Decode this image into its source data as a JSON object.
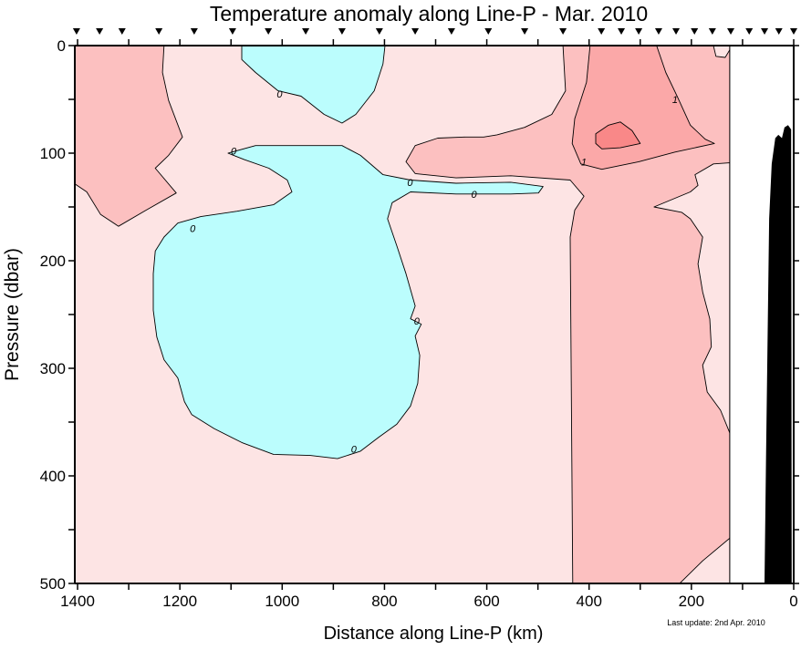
{
  "chart_data": {
    "type": "contour",
    "title": "Temperature anomaly along Line-P - Mar. 2010",
    "xlabel": "Distance along Line-P (km)",
    "ylabel": "Pressure (dbar)",
    "xlim": [
      1405,
      0
    ],
    "ylim": [
      0,
      500
    ],
    "x_reversed": true,
    "y_reversed": true,
    "x_ticks": [
      1400,
      1200,
      1000,
      800,
      600,
      400,
      200,
      0
    ],
    "y_ticks": [
      0,
      100,
      200,
      300,
      400,
      500
    ],
    "grid": false,
    "data_extent_km": [
      1405,
      125
    ],
    "stations_km": [
      1402,
      1357,
      1313,
      1241,
      1172,
      1097,
      1027,
      954,
      883,
      810,
      740,
      669,
      597,
      526,
      451,
      376,
      337,
      303,
      264,
      230,
      194,
      159,
      123,
      87,
      57,
      29,
      0
    ],
    "colors": {
      "lt0": "#bbfdfd",
      "0to0.5": "#fde4e4",
      "0.5to1": "#fcc0c0",
      "1to1.5": "#fba8a8",
      "gt1.5": "#f98888",
      "bathymetry": "#000000"
    },
    "regions": [
      {
        "level": "0.5to1",
        "points": [
          [
            1410,
            0
          ],
          [
            1231,
            0
          ],
          [
            1234,
            25
          ],
          [
            1222,
            51
          ],
          [
            1195,
            85
          ],
          [
            1222,
            102
          ],
          [
            1248,
            114
          ],
          [
            1207,
            137
          ],
          [
            1266,
            153
          ],
          [
            1320,
            168
          ],
          [
            1355,
            157
          ],
          [
            1382,
            136
          ],
          [
            1410,
            127
          ]
        ]
      },
      {
        "level": "0.5to1",
        "points": [
          [
            451,
            0
          ],
          [
            125,
            0
          ],
          [
            125,
            500
          ],
          [
            432,
            500
          ],
          [
            437,
            178
          ],
          [
            428,
            153
          ],
          [
            410,
            140
          ],
          [
            437,
            125
          ],
          [
            553,
            121
          ],
          [
            660,
            123
          ],
          [
            740,
            119
          ],
          [
            758,
            108
          ],
          [
            740,
            93
          ],
          [
            696,
            86
          ],
          [
            642,
            85
          ],
          [
            606,
            85
          ],
          [
            580,
            83
          ],
          [
            526,
            76
          ],
          [
            473,
            64
          ],
          [
            446,
            42
          ]
        ]
      },
      {
        "level": "0to0.5",
        "points": [
          [
            125,
            109
          ],
          [
            157,
            110
          ],
          [
            193,
            120
          ],
          [
            187,
            130
          ],
          [
            202,
            136
          ],
          [
            273,
            150
          ],
          [
            219,
            155
          ],
          [
            202,
            161
          ],
          [
            178,
            178
          ],
          [
            187,
            203
          ],
          [
            178,
            229
          ],
          [
            164,
            254
          ],
          [
            161,
            280
          ],
          [
            178,
            297
          ],
          [
            169,
            322
          ],
          [
            143,
            339
          ],
          [
            125,
            360
          ]
        ]
      },
      {
        "level": "0to0.5",
        "points": [
          [
            157,
            0
          ],
          [
            152,
            10
          ],
          [
            134,
            11
          ],
          [
            125,
            4
          ],
          [
            125,
            0
          ]
        ]
      },
      {
        "level": "0to0.5",
        "points": [
          [
            223,
            500
          ],
          [
            178,
            479
          ],
          [
            125,
            458
          ],
          [
            125,
            500
          ]
        ]
      },
      {
        "level": "1to1.5",
        "points": [
          [
            398,
            0
          ],
          [
            268,
            0
          ],
          [
            250,
            25
          ],
          [
            227,
            48
          ],
          [
            202,
            74
          ],
          [
            173,
            87
          ],
          [
            155,
            91
          ],
          [
            232,
            99
          ],
          [
            303,
            108
          ],
          [
            375,
            115
          ],
          [
            416,
            110
          ],
          [
            433,
            91
          ],
          [
            428,
            68
          ],
          [
            405,
            34
          ]
        ]
      },
      {
        "level": "gt1.5",
        "points": [
          [
            387,
            82
          ],
          [
            362,
            74
          ],
          [
            339,
            71
          ],
          [
            316,
            79
          ],
          [
            300,
            91
          ],
          [
            339,
            95
          ],
          [
            375,
            96
          ],
          [
            387,
            91
          ]
        ]
      },
      {
        "level": "lt0",
        "points": [
          [
            1079,
            0
          ],
          [
            799,
            0
          ],
          [
            803,
            17
          ],
          [
            820,
            42
          ],
          [
            856,
            64
          ],
          [
            883,
            72
          ],
          [
            918,
            64
          ],
          [
            963,
            47
          ],
          [
            1008,
            42
          ],
          [
            1052,
            25
          ],
          [
            1079,
            13
          ]
        ]
      },
      {
        "level": "lt0",
        "points": [
          [
            1106,
            100
          ],
          [
            1052,
            93
          ],
          [
            883,
            93
          ],
          [
            847,
            102
          ],
          [
            803,
            120
          ],
          [
            749,
            125
          ],
          [
            660,
            128
          ],
          [
            553,
            127
          ],
          [
            490,
            131
          ],
          [
            499,
            137
          ],
          [
            553,
            138
          ],
          [
            660,
            138
          ],
          [
            749,
            136
          ],
          [
            785,
            146
          ],
          [
            794,
            161
          ],
          [
            776,
            186
          ],
          [
            758,
            212
          ],
          [
            740,
            242
          ],
          [
            749,
            254
          ],
          [
            728,
            259
          ],
          [
            740,
            270
          ],
          [
            731,
            288
          ],
          [
            735,
            314
          ],
          [
            749,
            335
          ],
          [
            776,
            352
          ],
          [
            811,
            364
          ],
          [
            847,
            377
          ],
          [
            892,
            384
          ],
          [
            945,
            381
          ],
          [
            1017,
            380
          ],
          [
            1079,
            369
          ],
          [
            1133,
            356
          ],
          [
            1177,
            343
          ],
          [
            1191,
            331
          ],
          [
            1204,
            309
          ],
          [
            1231,
            292
          ],
          [
            1245,
            271
          ],
          [
            1252,
            246
          ],
          [
            1252,
            212
          ],
          [
            1248,
            191
          ],
          [
            1231,
            178
          ],
          [
            1204,
            165
          ],
          [
            1159,
            159
          ],
          [
            1088,
            154
          ],
          [
            1017,
            148
          ],
          [
            981,
            136
          ],
          [
            990,
            125
          ],
          [
            1026,
            114
          ],
          [
            1074,
            106
          ]
        ]
      }
    ],
    "bathymetry": [
      [
        57,
        500
      ],
      [
        54,
        381
      ],
      [
        48,
        161
      ],
      [
        43,
        110
      ],
      [
        36,
        86
      ],
      [
        30,
        83
      ],
      [
        23,
        86
      ],
      [
        18,
        76
      ],
      [
        11,
        74
      ],
      [
        5,
        78
      ],
      [
        4,
        500
      ]
    ],
    "contour_labels": [
      {
        "text": "0",
        "x": 1005,
        "y": 45
      },
      {
        "text": "0",
        "x": 1095,
        "y": 98
      },
      {
        "text": "0",
        "x": 1175,
        "y": 170
      },
      {
        "text": "0",
        "x": 750,
        "y": 127
      },
      {
        "text": "0",
        "x": 625,
        "y": 138
      },
      {
        "text": "0",
        "x": 737,
        "y": 256
      },
      {
        "text": "0",
        "x": 860,
        "y": 375
      },
      {
        "text": "1",
        "x": 232,
        "y": 50
      },
      {
        "text": "1",
        "x": 410,
        "y": 108
      }
    ]
  },
  "footer": {
    "last_update": "Last update: 2nd Apr. 2010"
  }
}
